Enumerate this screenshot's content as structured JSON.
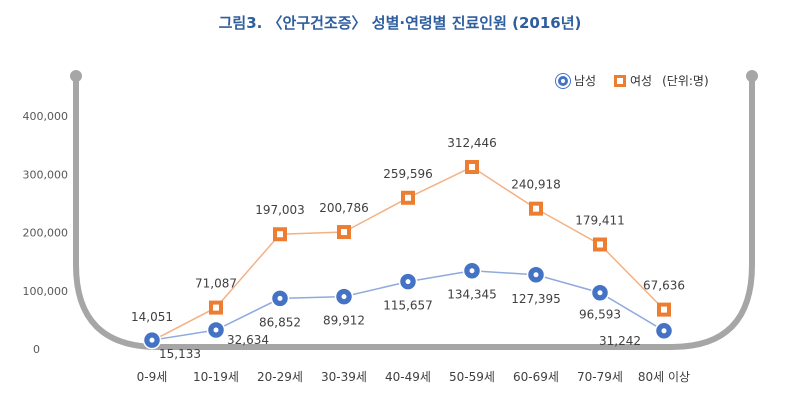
{
  "title": "그림3. 〈안구건조증〉 성별·연령별 진료인원 (2016년)",
  "legend": {
    "male": "남성",
    "female": "여성",
    "unit": "(단위:명)"
  },
  "colors": {
    "title": "#2f5e9e",
    "male": "#4472c4",
    "female": "#ed7d31",
    "frame": "#a6a6a6"
  },
  "chart_data": {
    "type": "line",
    "title": "그림3. 〈안구건조증〉 성별·연령별 진료인원 (2016년)",
    "categories": [
      "0-9세",
      "10-19세",
      "20-29세",
      "30-39세",
      "40-49세",
      "50-59세",
      "60-69세",
      "70-79세",
      "80세 이상"
    ],
    "series": [
      {
        "name": "남성",
        "values": [
          15133,
          32634,
          86852,
          89912,
          115657,
          134345,
          127395,
          96593,
          31242
        ],
        "labels": [
          "15,133",
          "32,634",
          "86,852",
          "89,912",
          "115,657",
          "134,345",
          "127,395",
          "96,593",
          "31,242"
        ]
      },
      {
        "name": "여성",
        "values": [
          14051,
          71087,
          197003,
          200786,
          259596,
          312446,
          240918,
          179411,
          67636
        ],
        "labels": [
          "14,051",
          "71,087",
          "197,003",
          "200,786",
          "259,596",
          "312,446",
          "240,918",
          "179,411",
          "67,636"
        ]
      }
    ],
    "yticks": [
      "0",
      "100,000",
      "200,000",
      "300,000",
      "400,000"
    ],
    "ylim": [
      0,
      400000
    ],
    "grid": false,
    "legend_position": "top-right"
  }
}
